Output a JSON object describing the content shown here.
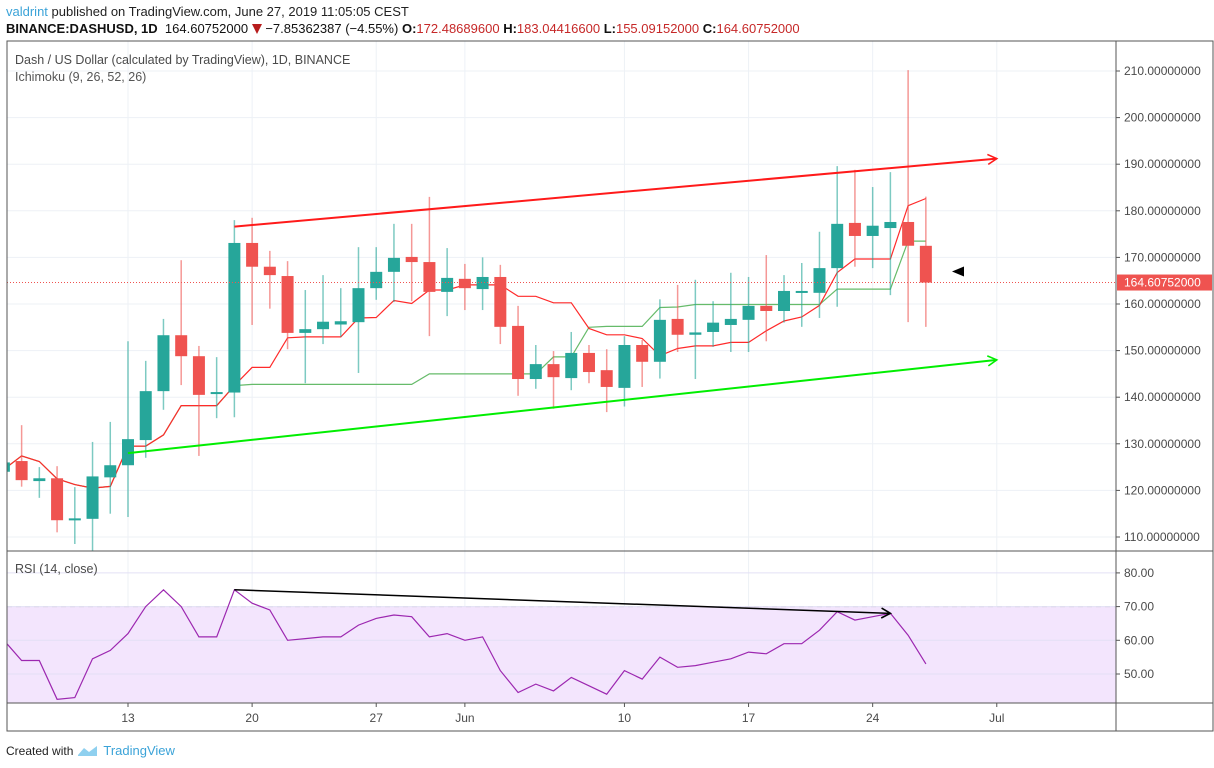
{
  "header": {
    "user": "valdrint",
    "published": "published on TradingView.com, June 27, 2019 11:05:05 CEST",
    "symbol": "BINANCE:DASHUSD, 1D",
    "last": "164.60752000",
    "change": "−7.85362387 (−4.55%)",
    "o_label": "O:",
    "o": "172.48689600",
    "h_label": "H:",
    "h": "183.04416600",
    "l_label": "L:",
    "l": "155.09152000",
    "c_label": "C:",
    "c": "164.60752000"
  },
  "legend": {
    "title": "Dash / US Dollar (calculated by TradingView), 1D, BINANCE",
    "indicator": "Ichimoku (9, 26, 52, 26)",
    "rsi": "RSI (14, close)"
  },
  "footer": {
    "created_with": "Created with",
    "brand": "TradingView"
  },
  "colors": {
    "up": "#26a69a",
    "down": "#ef5350",
    "tenkan": "#ff2a2a",
    "kijun": "#66bb6a",
    "rsi": "#9c27b0",
    "rsi_band": "#f3e5fd",
    "upper_trend": "#ff1a1a",
    "lower_trend": "#00ee00"
  },
  "chart_data": {
    "type": "candlestick",
    "price_axis": {
      "ylim": [
        107,
        215
      ],
      "ticks": [
        "210.00000000",
        "200.00000000",
        "190.00000000",
        "180.00000000",
        "170.00000000",
        "160.00000000",
        "150.00000000",
        "140.00000000",
        "130.00000000",
        "120.00000000",
        "110.00000000"
      ],
      "last_price_label": "164.60752000"
    },
    "time_axis": {
      "ticks": [
        {
          "date": "2019-05-13",
          "label": "13"
        },
        {
          "date": "2019-05-20",
          "label": "20"
        },
        {
          "date": "2019-05-27",
          "label": "27"
        },
        {
          "date": "2019-06-01",
          "label": "Jun"
        },
        {
          "date": "2019-06-10",
          "label": "10"
        },
        {
          "date": "2019-06-17",
          "label": "17"
        },
        {
          "date": "2019-06-24",
          "label": "24"
        },
        {
          "date": "2019-07-01",
          "label": "Jul"
        }
      ],
      "range": [
        "2019-05-06",
        "2019-07-07"
      ]
    },
    "grid": true,
    "candles": [
      {
        "date": "2019-05-06",
        "o": 124,
        "h": 127,
        "l": 122,
        "c": 126
      },
      {
        "date": "2019-05-07",
        "o": 126.3,
        "h": 134,
        "l": 120.8,
        "c": 122.2
      },
      {
        "date": "2019-05-08",
        "o": 122,
        "h": 125,
        "l": 118.4,
        "c": 122.6
      },
      {
        "date": "2019-05-09",
        "o": 122.6,
        "h": 125.2,
        "l": 111,
        "c": 113.6
      },
      {
        "date": "2019-05-10",
        "o": 113.7,
        "h": 120.7,
        "l": 108.5,
        "c": 114
      },
      {
        "date": "2019-05-11",
        "o": 113.9,
        "h": 130.4,
        "l": 107,
        "c": 123
      },
      {
        "date": "2019-05-12",
        "o": 122.8,
        "h": 134.7,
        "l": 115,
        "c": 125.4
      },
      {
        "date": "2019-05-13",
        "o": 125.4,
        "h": 152,
        "l": 114.3,
        "c": 131
      },
      {
        "date": "2019-05-14",
        "o": 130.8,
        "h": 147.8,
        "l": 127,
        "c": 141.3
      },
      {
        "date": "2019-05-15",
        "o": 141.3,
        "h": 156.8,
        "l": 137.3,
        "c": 153.3
      },
      {
        "date": "2019-05-16",
        "o": 153.3,
        "h": 169.4,
        "l": 142.6,
        "c": 148.8
      },
      {
        "date": "2019-05-17",
        "o": 148.8,
        "h": 151,
        "l": 127.4,
        "c": 140.5
      },
      {
        "date": "2019-05-18",
        "o": 140.8,
        "h": 148.6,
        "l": 135.5,
        "c": 141.1
      },
      {
        "date": "2019-05-19",
        "o": 141,
        "h": 178,
        "l": 135.7,
        "c": 173.1
      },
      {
        "date": "2019-05-20",
        "o": 173.1,
        "h": 178.5,
        "l": 155.5,
        "c": 168
      },
      {
        "date": "2019-05-21",
        "o": 168,
        "h": 171.4,
        "l": 159,
        "c": 166.2
      },
      {
        "date": "2019-05-22",
        "o": 166,
        "h": 169.2,
        "l": 150.3,
        "c": 153.8
      },
      {
        "date": "2019-05-23",
        "o": 153.8,
        "h": 163,
        "l": 143,
        "c": 154.6
      },
      {
        "date": "2019-05-24",
        "o": 154.6,
        "h": 166.2,
        "l": 151.4,
        "c": 156.2
      },
      {
        "date": "2019-05-25",
        "o": 155.6,
        "h": 163.4,
        "l": 153,
        "c": 156.3
      },
      {
        "date": "2019-05-26",
        "o": 156.1,
        "h": 172.2,
        "l": 145.2,
        "c": 163.4
      },
      {
        "date": "2019-05-27",
        "o": 163.4,
        "h": 172.2,
        "l": 160.9,
        "c": 166.9
      },
      {
        "date": "2019-05-28",
        "o": 166.9,
        "h": 177.2,
        "l": 160.4,
        "c": 169.9
      },
      {
        "date": "2019-05-29",
        "o": 170.1,
        "h": 177.2,
        "l": 160.6,
        "c": 169
      },
      {
        "date": "2019-05-30",
        "o": 169,
        "h": 183,
        "l": 153.1,
        "c": 162.6
      },
      {
        "date": "2019-05-31",
        "o": 162.6,
        "h": 172,
        "l": 157.4,
        "c": 165.6
      },
      {
        "date": "2019-06-01",
        "o": 165.4,
        "h": 168.6,
        "l": 158.7,
        "c": 163.4
      },
      {
        "date": "2019-06-02",
        "o": 163.2,
        "h": 170,
        "l": 158.7,
        "c": 165.8
      },
      {
        "date": "2019-06-03",
        "o": 165.8,
        "h": 168.4,
        "l": 151.4,
        "c": 155.1
      },
      {
        "date": "2019-06-04",
        "o": 155.3,
        "h": 159.6,
        "l": 140.3,
        "c": 143.9
      },
      {
        "date": "2019-06-05",
        "o": 143.9,
        "h": 151.2,
        "l": 141.8,
        "c": 147.1
      },
      {
        "date": "2019-06-06",
        "o": 147.1,
        "h": 149.9,
        "l": 137.5,
        "c": 144.3
      },
      {
        "date": "2019-06-07",
        "o": 144.1,
        "h": 154,
        "l": 141.5,
        "c": 149.5
      },
      {
        "date": "2019-06-08",
        "o": 149.5,
        "h": 151.2,
        "l": 143,
        "c": 145.4
      },
      {
        "date": "2019-06-09",
        "o": 145.8,
        "h": 150.3,
        "l": 136.8,
        "c": 142.2
      },
      {
        "date": "2019-06-10",
        "o": 142,
        "h": 153.1,
        "l": 138,
        "c": 151.2
      },
      {
        "date": "2019-06-11",
        "o": 151.2,
        "h": 152.3,
        "l": 142.2,
        "c": 147.6
      },
      {
        "date": "2019-06-12",
        "o": 147.6,
        "h": 161,
        "l": 144,
        "c": 156.6
      },
      {
        "date": "2019-06-13",
        "o": 156.8,
        "h": 164.1,
        "l": 149.7,
        "c": 153.4
      },
      {
        "date": "2019-06-14",
        "o": 153.4,
        "h": 165.2,
        "l": 143.9,
        "c": 153.9
      },
      {
        "date": "2019-06-15",
        "o": 154,
        "h": 160.6,
        "l": 150.8,
        "c": 156
      },
      {
        "date": "2019-06-16",
        "o": 155.5,
        "h": 166.7,
        "l": 149.7,
        "c": 156.8
      },
      {
        "date": "2019-06-17",
        "o": 156.6,
        "h": 165.8,
        "l": 149.7,
        "c": 159.6
      },
      {
        "date": "2019-06-18",
        "o": 159.6,
        "h": 170.5,
        "l": 152,
        "c": 158.5
      },
      {
        "date": "2019-06-19",
        "o": 158.5,
        "h": 166.2,
        "l": 156,
        "c": 162.8
      },
      {
        "date": "2019-06-20",
        "o": 162.6,
        "h": 168.8,
        "l": 155.1,
        "c": 162.8
      },
      {
        "date": "2019-06-21",
        "o": 162.4,
        "h": 175.5,
        "l": 157,
        "c": 167.7
      },
      {
        "date": "2019-06-22",
        "o": 167.7,
        "h": 189.6,
        "l": 159.4,
        "c": 177.2
      },
      {
        "date": "2019-06-23",
        "o": 177.4,
        "h": 188.8,
        "l": 168,
        "c": 174.6
      },
      {
        "date": "2019-06-24",
        "o": 174.6,
        "h": 185.1,
        "l": 167.7,
        "c": 176.8
      },
      {
        "date": "2019-06-25",
        "o": 176.3,
        "h": 188.3,
        "l": 161.9,
        "c": 177.6
      },
      {
        "date": "2019-06-26",
        "o": 177.6,
        "h": 210.2,
        "l": 156.1,
        "c": 172.5
      },
      {
        "date": "2019-06-27",
        "o": 172.486896,
        "h": 183.044166,
        "l": 155.09152,
        "c": 164.60752
      }
    ],
    "trendlines": [
      {
        "name": "upper",
        "from": {
          "date": "2019-05-19",
          "price": 176.6
        },
        "to": {
          "date": "2019-07-01",
          "price": 191.2
        },
        "arrow": true
      },
      {
        "name": "lower",
        "from": {
          "date": "2019-05-13",
          "price": 128
        },
        "to": {
          "date": "2019-07-01",
          "price": 148
        },
        "arrow": true
      }
    ],
    "rsi": {
      "ylim": [
        41.4,
        86.5
      ],
      "ticks": [
        "80.00",
        "70.00",
        "60.00",
        "50.00"
      ],
      "band": [
        30,
        70
      ],
      "values": [
        60,
        54,
        54,
        42.5,
        43,
        54.5,
        57,
        62,
        70,
        75,
        70,
        61,
        61,
        75,
        71,
        69,
        60,
        60.5,
        61,
        61,
        64.5,
        66.5,
        67.5,
        67,
        61,
        62,
        60,
        61,
        51,
        44.5,
        47,
        45,
        49,
        46.5,
        44,
        51,
        48.5,
        55,
        52,
        52.5,
        53.5,
        54.5,
        56.5,
        56,
        59,
        59,
        63,
        68.5,
        66,
        67,
        68,
        61.5,
        53
      ],
      "divergence": {
        "from": {
          "date": "2019-05-19",
          "value": 75
        },
        "to": {
          "date": "2019-06-25",
          "value": 68
        }
      }
    }
  }
}
